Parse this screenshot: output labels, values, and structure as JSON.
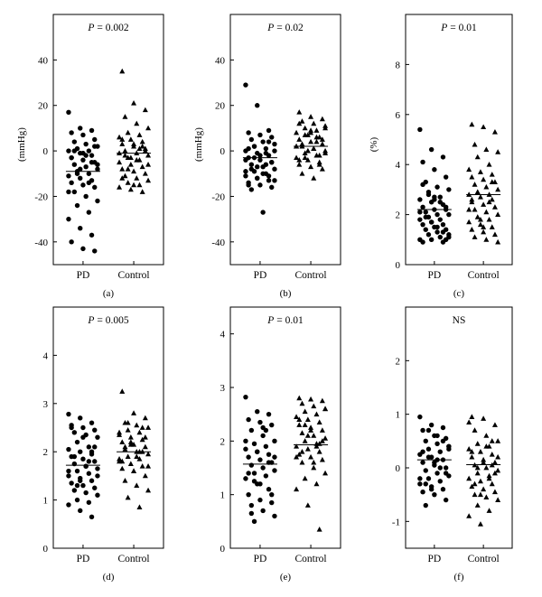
{
  "chart_data": [
    {
      "panel": "(a)",
      "type": "scatter",
      "annotation_prefix": "P",
      "annotation_value": "= 0.002",
      "ylabel": "(mmHg)",
      "ylim": [
        -50,
        60
      ],
      "yticks": [
        -40,
        -20,
        0,
        20,
        40
      ],
      "categories": [
        "PD",
        "Control"
      ],
      "series": [
        {
          "category": "PD",
          "marker": "circle",
          "median": -9,
          "values": [
            17,
            10,
            9,
            8,
            7,
            5,
            4,
            3,
            2,
            1,
            0,
            0,
            -1,
            -2,
            -3,
            -4,
            -5,
            -6,
            -7,
            -8,
            -9,
            -10,
            -11,
            -12,
            -13,
            -14,
            -15,
            -16,
            -18,
            -20,
            -22,
            -24,
            -27,
            -30,
            -34,
            -37,
            -40,
            -43,
            -44,
            0,
            -2,
            -6,
            -10,
            -14,
            -18,
            -8,
            -5,
            -3,
            -1,
            2
          ]
        },
        {
          "category": "Control",
          "marker": "triangle",
          "median": -1,
          "values": [
            35,
            21,
            18,
            15,
            12,
            10,
            8,
            7,
            6,
            5,
            4,
            3,
            2,
            1,
            0,
            -1,
            -2,
            -3,
            -4,
            -5,
            -6,
            -7,
            -8,
            -9,
            -10,
            -11,
            -12,
            -13,
            -14,
            -15,
            -16,
            -17,
            -18,
            5,
            3,
            0,
            -2,
            -4,
            -6,
            -8,
            1,
            -1,
            -3,
            2,
            -12,
            -15
          ]
        }
      ]
    },
    {
      "panel": "(b)",
      "type": "scatter",
      "annotation_prefix": "P",
      "annotation_value": "= 0.02",
      "ylabel": "(mmHg)",
      "ylim": [
        -50,
        60
      ],
      "yticks": [
        -40,
        -20,
        0,
        20,
        40
      ],
      "categories": [
        "PD",
        "Control"
      ],
      "series": [
        {
          "category": "PD",
          "marker": "circle",
          "median": -3,
          "values": [
            29,
            20,
            9,
            8,
            7,
            6,
            5,
            4,
            3,
            2,
            1,
            0,
            -1,
            -2,
            -3,
            -4,
            -5,
            -6,
            -7,
            -8,
            -9,
            -10,
            -11,
            -12,
            -13,
            -14,
            -15,
            -16,
            -17,
            -27,
            0,
            -3,
            -6,
            -9,
            -12,
            4,
            1,
            -2,
            -5,
            -8,
            -10,
            -13,
            2,
            -1,
            -4,
            -7,
            -11,
            -15
          ]
        },
        {
          "category": "Control",
          "marker": "triangle",
          "median": 2,
          "values": [
            17,
            15,
            14,
            13,
            12,
            11,
            10,
            9,
            8,
            7,
            6,
            5,
            4,
            3,
            2,
            1,
            0,
            -1,
            -2,
            -3,
            -4,
            -5,
            -6,
            -7,
            -8,
            -10,
            -12,
            10,
            7,
            4,
            2,
            0,
            -2,
            -4,
            8,
            5,
            3,
            1,
            -1,
            -3,
            6,
            2,
            0,
            -6,
            12,
            9
          ]
        }
      ]
    },
    {
      "panel": "(c)",
      "type": "scatter",
      "annotation_prefix": "P",
      "annotation_value": "= 0.01",
      "ylabel": "(%)",
      "ylim": [
        0,
        10
      ],
      "yticks": [
        0,
        2,
        4,
        6,
        8
      ],
      "categories": [
        "PD",
        "Control"
      ],
      "series": [
        {
          "category": "PD",
          "marker": "circle",
          "median": 2.2,
          "values": [
            5.4,
            4.6,
            4.3,
            4.1,
            3.8,
            3.5,
            3.3,
            3.1,
            3.0,
            2.8,
            2.7,
            2.6,
            2.5,
            2.4,
            2.3,
            2.2,
            2.2,
            2.1,
            2.0,
            2.0,
            1.9,
            1.8,
            1.8,
            1.7,
            1.6,
            1.6,
            1.5,
            1.4,
            1.4,
            1.3,
            1.2,
            1.2,
            1.1,
            1.0,
            1.0,
            0.9,
            0.9,
            2.6,
            2.3,
            1.9,
            1.5,
            1.1,
            2.9,
            2.5,
            2.1,
            1.7,
            1.3,
            3.2,
            2.7,
            1.0
          ]
        },
        {
          "category": "Control",
          "marker": "triangle",
          "median": 2.8,
          "values": [
            5.6,
            5.5,
            5.3,
            4.8,
            4.6,
            4.5,
            4.3,
            4.0,
            3.8,
            3.7,
            3.6,
            3.5,
            3.4,
            3.3,
            3.2,
            3.1,
            3.0,
            2.9,
            2.8,
            2.8,
            2.7,
            2.6,
            2.5,
            2.4,
            2.3,
            2.2,
            2.1,
            2.0,
            1.9,
            1.8,
            1.7,
            1.6,
            1.5,
            1.4,
            1.3,
            1.2,
            1.1,
            1.0,
            0.9,
            2.9,
            2.5,
            2.2,
            1.8,
            3.3,
            2.6,
            1.5
          ]
        }
      ]
    },
    {
      "panel": "(d)",
      "type": "scatter",
      "annotation_prefix": "P",
      "annotation_value": "= 0.005",
      "ylabel": "",
      "ylim": [
        0,
        5
      ],
      "yticks": [
        0,
        1,
        2,
        3,
        4
      ],
      "categories": [
        "PD",
        "Control"
      ],
      "series": [
        {
          "category": "PD",
          "marker": "circle",
          "median": 1.72,
          "values": [
            2.78,
            2.7,
            2.6,
            2.55,
            2.5,
            2.45,
            2.4,
            2.35,
            2.3,
            2.2,
            2.1,
            2.05,
            2.0,
            1.95,
            1.9,
            1.85,
            1.8,
            1.75,
            1.7,
            1.65,
            1.6,
            1.55,
            1.5,
            1.45,
            1.4,
            1.35,
            1.3,
            1.25,
            1.2,
            1.15,
            1.1,
            1.0,
            0.95,
            0.9,
            0.78,
            0.65,
            2.5,
            2.3,
            2.1,
            1.9,
            1.7,
            1.5,
            1.3,
            1.8,
            1.6,
            1.4,
            2.0
          ]
        },
        {
          "category": "Control",
          "marker": "triangle",
          "median": 2.0,
          "values": [
            3.25,
            2.8,
            2.7,
            2.6,
            2.55,
            2.5,
            2.45,
            2.4,
            2.35,
            2.3,
            2.25,
            2.2,
            2.15,
            2.1,
            2.05,
            2.0,
            1.95,
            1.9,
            1.85,
            1.8,
            1.75,
            1.7,
            1.65,
            1.6,
            1.5,
            1.4,
            1.3,
            1.2,
            1.05,
            0.85,
            2.4,
            2.2,
            2.0,
            1.8,
            1.6,
            2.3,
            2.1,
            1.9,
            1.7,
            2.6,
            2.0,
            1.85,
            2.15,
            2.5
          ]
        }
      ]
    },
    {
      "panel": "(e)",
      "type": "scatter",
      "annotation_prefix": "P",
      "annotation_value": "= 0.01",
      "ylabel": "",
      "ylim": [
        0,
        4.5
      ],
      "yticks": [
        0,
        1,
        2,
        3,
        4
      ],
      "categories": [
        "PD",
        "Control"
      ],
      "series": [
        {
          "category": "PD",
          "marker": "circle",
          "median": 1.57,
          "values": [
            2.82,
            2.55,
            2.5,
            2.4,
            2.35,
            2.3,
            2.2,
            2.1,
            2.0,
            1.95,
            1.9,
            1.85,
            1.8,
            1.75,
            1.7,
            1.65,
            1.6,
            1.55,
            1.5,
            1.45,
            1.4,
            1.35,
            1.3,
            1.2,
            1.1,
            1.0,
            0.9,
            0.85,
            0.8,
            0.7,
            0.6,
            0.5,
            2.2,
            2.0,
            1.8,
            1.6,
            1.4,
            1.2,
            1.0,
            0.65,
            2.25,
            1.7,
            1.25
          ]
        },
        {
          "category": "Control",
          "marker": "triangle",
          "median": 1.93,
          "values": [
            2.8,
            2.78,
            2.75,
            2.7,
            2.65,
            2.6,
            2.55,
            2.5,
            2.45,
            2.4,
            2.35,
            2.3,
            2.25,
            2.2,
            2.15,
            2.1,
            2.05,
            2.0,
            1.95,
            1.9,
            1.85,
            1.8,
            1.75,
            1.7,
            1.65,
            1.6,
            1.5,
            1.4,
            1.3,
            1.2,
            1.1,
            0.8,
            0.35,
            2.4,
            2.2,
            2.0,
            1.8,
            1.6,
            2.6,
            2.3,
            1.9,
            1.7,
            2.1,
            1.95
          ]
        }
      ]
    },
    {
      "panel": "(f)",
      "type": "scatter",
      "annotation_prefix": "",
      "annotation_value": "NS",
      "ylabel": "",
      "ylim": [
        -1.5,
        3
      ],
      "yticks": [
        -1,
        0,
        1,
        2
      ],
      "categories": [
        "PD",
        "Control"
      ],
      "series": [
        {
          "category": "PD",
          "marker": "circle",
          "median": 0.15,
          "values": [
            0.95,
            0.8,
            0.75,
            0.7,
            0.6,
            0.55,
            0.5,
            0.45,
            0.4,
            0.35,
            0.3,
            0.25,
            0.2,
            0.15,
            0.1,
            0.05,
            0.0,
            -0.05,
            -0.1,
            -0.15,
            -0.2,
            -0.25,
            -0.3,
            -0.35,
            -0.4,
            -0.45,
            -0.5,
            -0.6,
            -0.7,
            0.6,
            0.4,
            0.2,
            0.0,
            -0.2,
            -0.4,
            0.5,
            0.3,
            0.1,
            -0.1,
            -0.3,
            0.15,
            0.35,
            0.7
          ]
        },
        {
          "category": "Control",
          "marker": "triangle",
          "median": 0.06,
          "values": [
            0.95,
            0.92,
            0.8,
            0.7,
            0.6,
            0.5,
            0.45,
            0.4,
            0.35,
            0.3,
            0.25,
            0.2,
            0.15,
            0.1,
            0.05,
            0.0,
            -0.05,
            -0.1,
            -0.15,
            -0.2,
            -0.25,
            -0.3,
            -0.35,
            -0.4,
            -0.45,
            -0.5,
            -0.55,
            -0.6,
            -0.7,
            -0.8,
            -0.9,
            -1.05,
            0.5,
            0.3,
            0.1,
            -0.1,
            -0.3,
            0.4,
            0.2,
            0.0,
            -0.2,
            0.85,
            -0.5,
            0.05
          ]
        }
      ]
    }
  ]
}
